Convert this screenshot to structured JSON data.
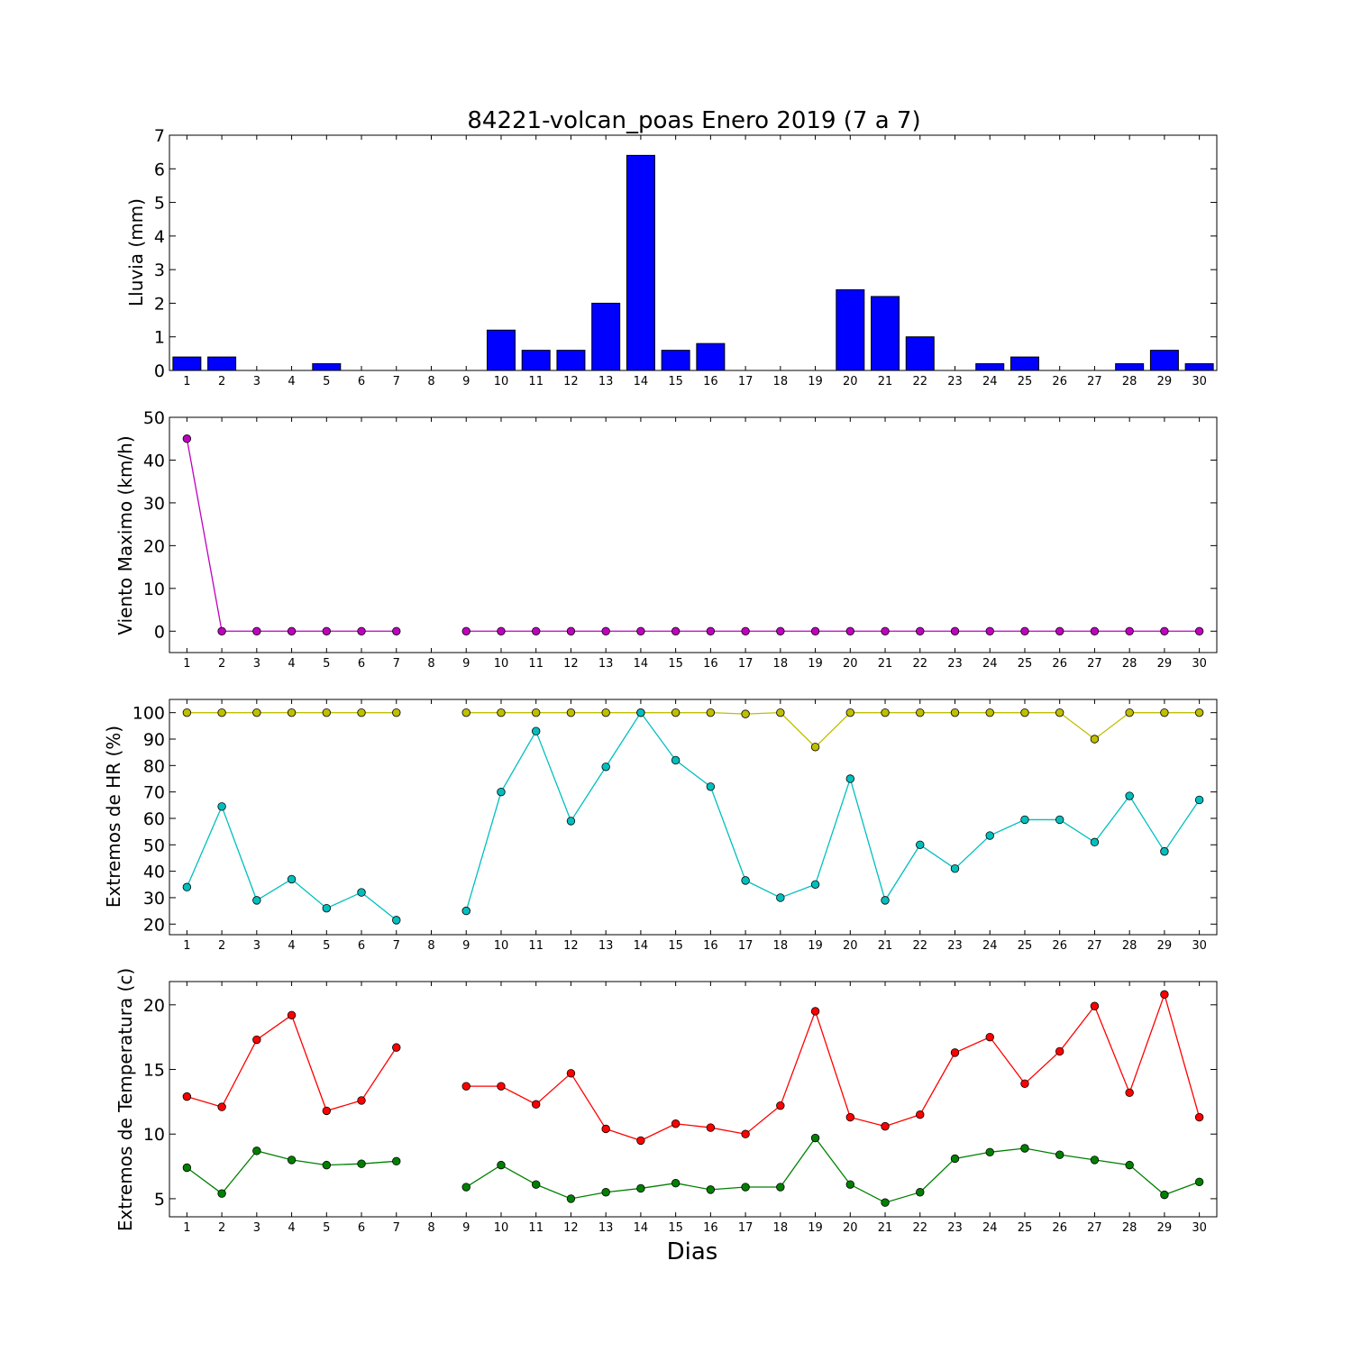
{
  "title": "84221-volcan_poas Enero 2019  (7 a 7)",
  "xlabel": "Dias",
  "chart_data": [
    {
      "type": "bar",
      "ylabel": "Lluvia (mm)",
      "x": [
        1,
        2,
        3,
        4,
        5,
        6,
        7,
        8,
        9,
        10,
        11,
        12,
        13,
        14,
        15,
        16,
        17,
        18,
        19,
        20,
        21,
        22,
        23,
        24,
        25,
        26,
        27,
        28,
        29,
        30
      ],
      "ylim": [
        0,
        7
      ],
      "yticks": [
        0,
        1,
        2,
        3,
        4,
        5,
        6,
        7
      ],
      "series": [
        {
          "color": "#0000ff",
          "values": [
            0.4,
            0.4,
            0,
            0,
            0.2,
            0,
            0,
            0,
            0,
            1.2,
            0.6,
            0.6,
            2.0,
            6.4,
            0.6,
            0.8,
            0,
            0,
            0,
            2.4,
            2.2,
            1.0,
            0,
            0.2,
            0.4,
            0,
            0,
            0.2,
            0.6,
            0.2
          ]
        }
      ]
    },
    {
      "type": "line",
      "ylabel": "Viento Maximo (km/h)",
      "x": [
        1,
        2,
        3,
        4,
        5,
        6,
        7,
        8,
        9,
        10,
        11,
        12,
        13,
        14,
        15,
        16,
        17,
        18,
        19,
        20,
        21,
        22,
        23,
        24,
        25,
        26,
        27,
        28,
        29,
        30
      ],
      "ylim": [
        -5,
        50
      ],
      "yticks": [
        0,
        10,
        20,
        30,
        40,
        50
      ],
      "series": [
        {
          "color": "#bf00bf",
          "values": [
            45,
            0,
            0,
            0,
            0,
            0,
            0,
            null,
            0,
            0,
            0,
            0,
            0,
            0,
            0,
            0,
            0,
            0,
            0,
            0,
            0,
            0,
            0,
            0,
            0,
            0,
            0,
            0,
            0,
            0
          ]
        }
      ]
    },
    {
      "type": "line",
      "ylabel": "Extremos de HR (%)",
      "x": [
        1,
        2,
        3,
        4,
        5,
        6,
        7,
        8,
        9,
        10,
        11,
        12,
        13,
        14,
        15,
        16,
        17,
        18,
        19,
        20,
        21,
        22,
        23,
        24,
        25,
        26,
        27,
        28,
        29,
        30
      ],
      "ylim": [
        16,
        105
      ],
      "yticks": [
        20,
        30,
        40,
        50,
        60,
        70,
        80,
        90,
        100
      ],
      "series": [
        {
          "color": "#bfbf00",
          "values": [
            100,
            100,
            100,
            100,
            100,
            100,
            100,
            null,
            100,
            100,
            100,
            100,
            100,
            100,
            100,
            100,
            99.5,
            100,
            87,
            100,
            100,
            100,
            100,
            100,
            100,
            100,
            90,
            100,
            100,
            100
          ]
        },
        {
          "color": "#00bfbf",
          "values": [
            34,
            64.5,
            29,
            37,
            26,
            32,
            21.5,
            null,
            25,
            70,
            93,
            59,
            79.5,
            100,
            82,
            72,
            36.5,
            30,
            35,
            75,
            29,
            50,
            41,
            53.5,
            59.5,
            59.5,
            51,
            68.5,
            47.5,
            67
          ]
        }
      ]
    },
    {
      "type": "line",
      "ylabel": "Extremos de Temperatura (c)",
      "x": [
        1,
        2,
        3,
        4,
        5,
        6,
        7,
        8,
        9,
        10,
        11,
        12,
        13,
        14,
        15,
        16,
        17,
        18,
        19,
        20,
        21,
        22,
        23,
        24,
        25,
        26,
        27,
        28,
        29,
        30
      ],
      "ylim": [
        3.6,
        21.8
      ],
      "yticks": [
        5,
        10,
        15,
        20
      ],
      "series": [
        {
          "color": "#ff0000",
          "values": [
            12.9,
            12.1,
            17.3,
            19.2,
            11.8,
            12.6,
            16.7,
            null,
            13.7,
            13.7,
            12.3,
            14.7,
            10.4,
            9.5,
            10.8,
            10.5,
            10.0,
            12.2,
            19.5,
            11.3,
            10.6,
            11.5,
            16.3,
            17.5,
            13.9,
            16.4,
            19.9,
            13.2,
            20.8,
            11.3
          ]
        },
        {
          "color": "#008000",
          "values": [
            7.4,
            5.4,
            8.7,
            8.0,
            7.6,
            7.7,
            7.9,
            null,
            5.9,
            7.6,
            6.1,
            5.0,
            5.5,
            5.8,
            6.2,
            5.7,
            5.9,
            5.9,
            9.7,
            6.1,
            4.7,
            5.5,
            8.1,
            8.6,
            8.9,
            8.4,
            8.0,
            7.6,
            5.3,
            6.3
          ]
        }
      ]
    }
  ]
}
